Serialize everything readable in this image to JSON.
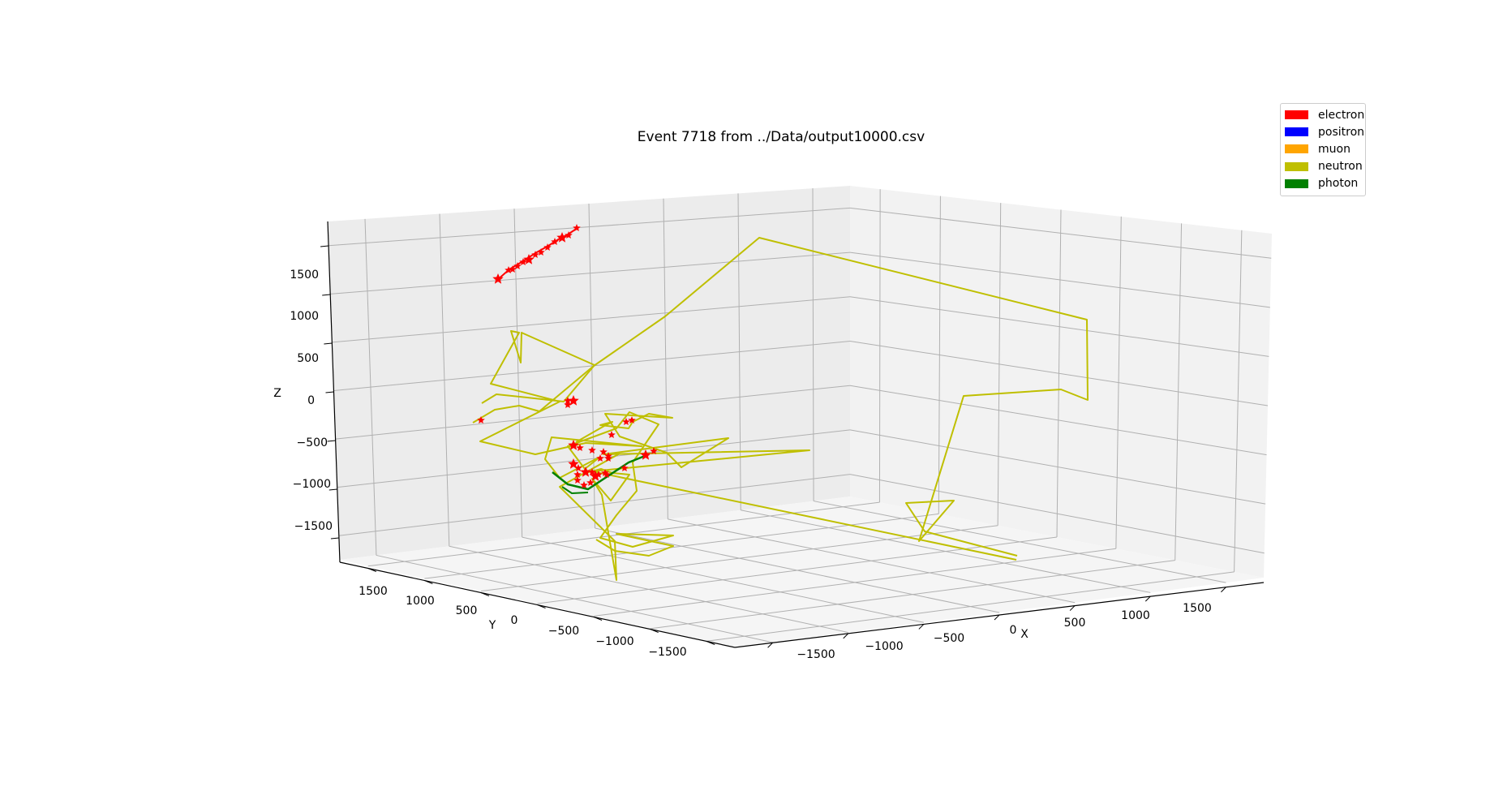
{
  "chart_data": {
    "type": "scatter3d",
    "title": "Event 7718 from ../Data/output10000.csv",
    "xlabel": "X",
    "ylabel": "Y",
    "zlabel": "Z",
    "x_ticks": [
      "−1500",
      "−1000",
      "−500",
      "0",
      "500",
      "1000",
      "1500"
    ],
    "y_ticks": [
      "1500",
      "1000",
      "500",
      "0",
      "−500",
      "−1000",
      "−1500"
    ],
    "z_ticks": [
      "1500",
      "1000",
      "500",
      "0",
      "−500",
      "−1000",
      "−1500"
    ],
    "grid": true,
    "legend_position": "top-right",
    "legend": [
      {
        "label": "electron",
        "color": "#ff0000"
      },
      {
        "label": "positron",
        "color": "#0000ff"
      },
      {
        "label": "muon",
        "color": "#ffa500"
      },
      {
        "label": "neutron",
        "color": "#bfbf00"
      },
      {
        "label": "photon",
        "color": "#008000"
      }
    ]
  }
}
